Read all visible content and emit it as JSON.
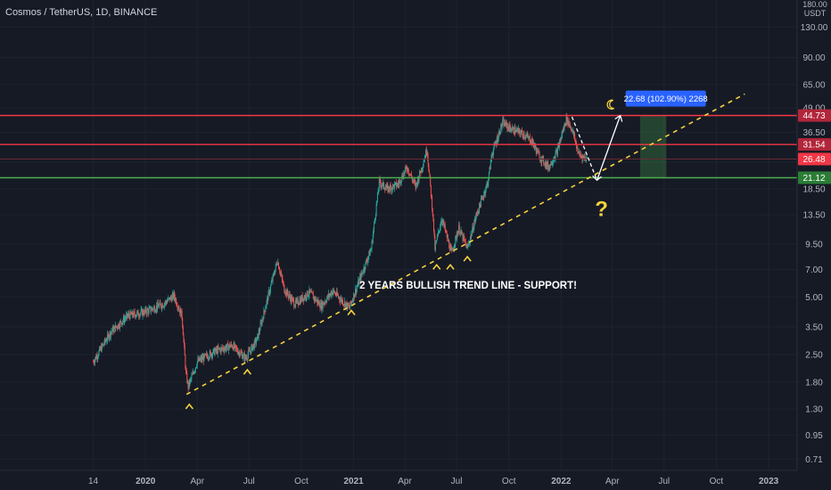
{
  "header": {
    "symbol_title": "Cosmos / TetherUS, 1D, BINANCE",
    "currency_top": "180.00",
    "currency": "USDT"
  },
  "colors": {
    "background": "#161a25",
    "candle_up": "#26a69a",
    "candle_down": "#ef5350",
    "resistance": "#f23645",
    "support": "#4caf50",
    "trendline": "#f7d23c",
    "annotation": "#f7d23c",
    "target_box": "#2962ff"
  },
  "chart_data": {
    "type": "candlestick",
    "title": "Cosmos / TetherUS, 1D, BINANCE",
    "yscale": "log",
    "ylim": [
      0.62,
      180
    ],
    "xlim": [
      "2019-04-20",
      "2023-02-20"
    ],
    "y_tick_labels": [
      "130.00",
      "90.00",
      "65.00",
      "49.00",
      "36.50",
      "25.50",
      "18.50",
      "13.50",
      "9.50",
      "7.00",
      "5.00",
      "3.50",
      "2.50",
      "1.80",
      "1.30",
      "0.95",
      "0.71"
    ],
    "x_tick_labels": [
      {
        "label": "14",
        "date": "2019-10-01"
      },
      {
        "label": "2020",
        "date": "2020-01-01"
      },
      {
        "label": "Apr",
        "date": "2020-04-01"
      },
      {
        "label": "Jul",
        "date": "2020-07-01"
      },
      {
        "label": "Oct",
        "date": "2020-10-01"
      },
      {
        "label": "2021",
        "date": "2021-01-01"
      },
      {
        "label": "Apr",
        "date": "2021-04-01"
      },
      {
        "label": "Jul",
        "date": "2021-07-01"
      },
      {
        "label": "Oct",
        "date": "2021-10-01"
      },
      {
        "label": "2022",
        "date": "2022-01-01"
      },
      {
        "label": "Apr",
        "date": "2022-04-01"
      },
      {
        "label": "Jul",
        "date": "2022-07-01"
      },
      {
        "label": "Oct",
        "date": "2022-10-01"
      },
      {
        "label": "2023",
        "date": "2023-01-01"
      }
    ],
    "price_path": [
      [
        "2019-10-01",
        2.3
      ],
      [
        "2019-11-01",
        3.3
      ],
      [
        "2019-12-01",
        4.0
      ],
      [
        "2020-01-01",
        4.2
      ],
      [
        "2020-02-01",
        4.6
      ],
      [
        "2020-02-20",
        5.1
      ],
      [
        "2020-03-05",
        4.0
      ],
      [
        "2020-03-12",
        2.0
      ],
      [
        "2020-03-16",
        1.7
      ],
      [
        "2020-04-01",
        2.3
      ],
      [
        "2020-05-01",
        2.6
      ],
      [
        "2020-06-01",
        2.8
      ],
      [
        "2020-06-25",
        2.4
      ],
      [
        "2020-07-15",
        3.0
      ],
      [
        "2020-08-10",
        6.0
      ],
      [
        "2020-08-20",
        7.8
      ],
      [
        "2020-09-01",
        5.5
      ],
      [
        "2020-09-20",
        4.6
      ],
      [
        "2020-10-15",
        5.3
      ],
      [
        "2020-11-05",
        4.5
      ],
      [
        "2020-11-25",
        5.4
      ],
      [
        "2020-12-24",
        4.4
      ],
      [
        "2021-01-10",
        6.0
      ],
      [
        "2021-02-01",
        9.0
      ],
      [
        "2021-02-15",
        20.0
      ],
      [
        "2021-03-01",
        18.5
      ],
      [
        "2021-03-20",
        19.5
      ],
      [
        "2021-04-05",
        24.0
      ],
      [
        "2021-04-20",
        19.0
      ],
      [
        "2021-05-01",
        24.0
      ],
      [
        "2021-05-10",
        30.0
      ],
      [
        "2021-05-20",
        14.0
      ],
      [
        "2021-05-24",
        9.0
      ],
      [
        "2021-06-05",
        13.0
      ],
      [
        "2021-06-22",
        8.5
      ],
      [
        "2021-07-05",
        11.5
      ],
      [
        "2021-07-20",
        9.0
      ],
      [
        "2021-08-05",
        13.5
      ],
      [
        "2021-08-25",
        20.0
      ],
      [
        "2021-09-01",
        28.0
      ],
      [
        "2021-09-20",
        41.0
      ],
      [
        "2021-10-05",
        38.0
      ],
      [
        "2021-10-25",
        36.0
      ],
      [
        "2021-11-10",
        33.0
      ],
      [
        "2021-11-25",
        27.0
      ],
      [
        "2021-12-10",
        24.0
      ],
      [
        "2021-12-25",
        29.0
      ],
      [
        "2022-01-10",
        43.0
      ],
      [
        "2022-01-20",
        38.0
      ],
      [
        "2022-02-01",
        28.0
      ],
      [
        "2022-02-15",
        26.5
      ]
    ],
    "horizontal_levels": [
      {
        "label": "44.73",
        "value": 44.73,
        "role": "resistance"
      },
      {
        "label": "31.54",
        "value": 31.54,
        "role": "resistance"
      },
      {
        "label": "26.48",
        "value": 26.48,
        "role": "current-price"
      },
      {
        "label": "21.12",
        "value": 21.12,
        "role": "support"
      }
    ],
    "trendline": {
      "start": [
        "2020-03-13",
        1.55
      ],
      "end": [
        "2022-11-20",
        58.0
      ],
      "style": "dashed"
    },
    "trendline_label": "2 YEARS BULLISH TREND LINE - SUPPORT!",
    "touch_markers": [
      [
        "2020-03-18",
        1.45
      ],
      [
        "2020-06-28",
        2.2
      ],
      [
        "2020-12-28",
        4.5
      ],
      [
        "2021-05-27",
        7.8
      ],
      [
        "2021-06-20",
        7.8
      ],
      [
        "2021-07-20",
        8.6
      ]
    ],
    "projection": {
      "from": [
        "2022-01-20",
        44.0
      ],
      "via": [
        "2022-03-05",
        20.5
      ],
      "to": [
        "2022-04-15",
        44.73
      ]
    },
    "target_label": "22.68 (102.90%) 2268",
    "target_zone": {
      "x_start": "2022-05-20",
      "x_end": "2022-07-05",
      "y_low": 21.12,
      "y_high": 44.73
    },
    "question_mark": "?"
  }
}
